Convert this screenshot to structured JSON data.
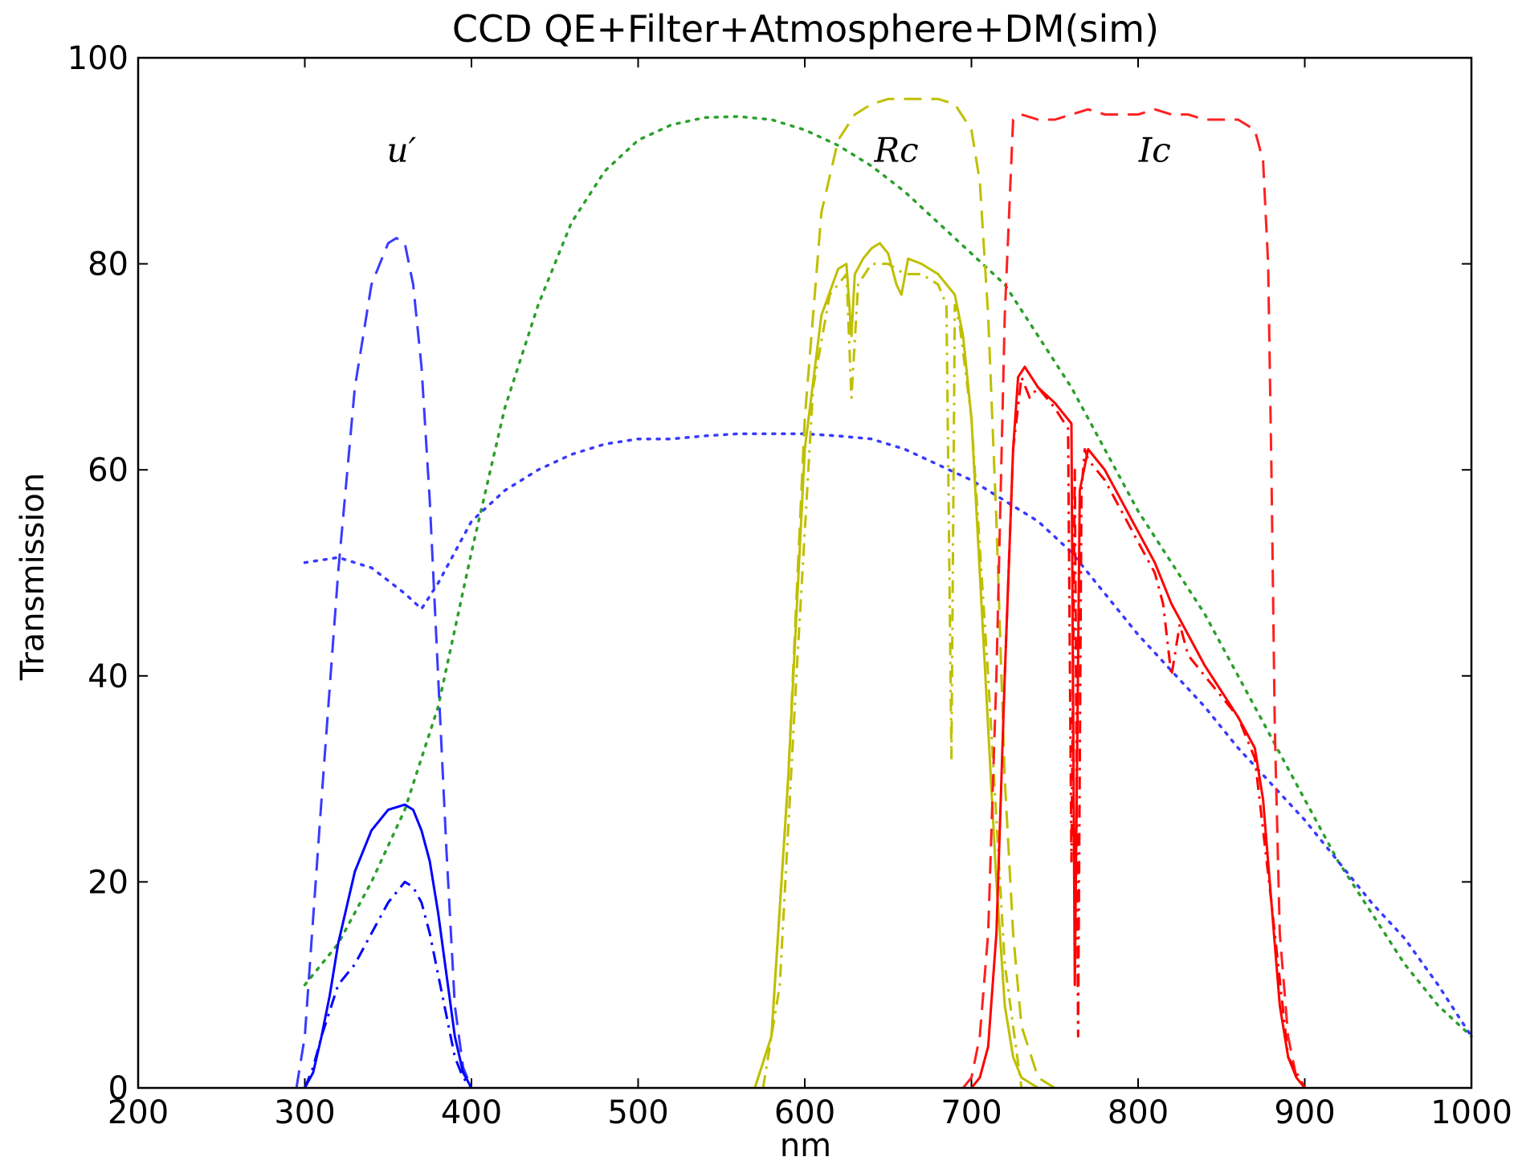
{
  "chart_data": {
    "type": "line",
    "title": "CCD QE+Filter+Atmosphere+DM(sim)",
    "xlabel": "nm",
    "ylabel": "Transmission",
    "xlim": [
      200,
      1000
    ],
    "ylim": [
      0,
      100
    ],
    "xticks": [
      200,
      300,
      400,
      500,
      600,
      700,
      800,
      900,
      1000
    ],
    "yticks": [
      0,
      20,
      40,
      60,
      80,
      100
    ],
    "grid": false,
    "legend": "none",
    "annotations": [
      {
        "text": "u′",
        "x": 358,
        "y": 91
      },
      {
        "text": "Rc",
        "x": 655,
        "y": 91
      },
      {
        "text": "Ic",
        "x": 810,
        "y": 91
      }
    ],
    "series": [
      {
        "role": "ccd_qe",
        "style": "dotted",
        "color": "#2ca02c",
        "x": [
          300,
          320,
          340,
          360,
          380,
          400,
          420,
          440,
          460,
          480,
          500,
          520,
          540,
          560,
          580,
          600,
          620,
          640,
          660,
          680,
          700,
          720,
          740,
          760,
          780,
          800,
          820,
          840,
          860,
          880,
          900,
          920,
          940,
          960,
          980,
          1000
        ],
        "y": [
          10,
          14,
          20,
          27,
          37,
          52,
          66,
          76,
          84,
          89,
          92,
          93.5,
          94.2,
          94.3,
          94,
          93,
          91.5,
          89.5,
          87,
          84,
          81,
          78,
          73,
          68,
          62,
          56,
          51,
          46,
          40,
          34,
          28,
          22,
          17,
          12,
          8,
          5
        ]
      },
      {
        "role": "atmosphere",
        "style": "dotted",
        "color": "#3a3aff",
        "x": [
          300,
          320,
          340,
          360,
          370,
          380,
          400,
          420,
          440,
          460,
          480,
          500,
          520,
          540,
          560,
          580,
          600,
          620,
          640,
          660,
          680,
          700,
          720,
          740,
          760,
          780,
          800,
          820,
          840,
          860,
          880,
          900,
          920,
          940,
          960,
          980,
          1000
        ],
        "y": [
          51,
          51.5,
          50.5,
          48,
          46.5,
          49,
          55,
          58,
          60,
          61.5,
          62.5,
          63,
          63,
          63.3,
          63.5,
          63.5,
          63.5,
          63.3,
          63,
          62,
          60.5,
          59,
          57,
          55,
          52,
          48,
          44,
          40.5,
          37,
          33,
          29.5,
          26,
          22,
          18,
          14.5,
          10,
          5
        ]
      },
      {
        "role": "u_filter",
        "style": "dashed",
        "color": "#3a3aff",
        "x": [
          295,
          300,
          310,
          320,
          330,
          340,
          345,
          350,
          355,
          360,
          365,
          370,
          375,
          380,
          385,
          390,
          395,
          400
        ],
        "y": [
          0,
          5,
          28,
          50,
          68,
          78,
          80,
          82,
          82.5,
          82,
          78,
          70,
          57,
          40,
          23,
          8,
          2,
          0
        ]
      },
      {
        "role": "u_total",
        "style": "solid",
        "color": "#0000ff",
        "x": [
          300,
          305,
          310,
          315,
          320,
          330,
          340,
          350,
          360,
          365,
          370,
          375,
          380,
          385,
          390,
          395,
          400
        ],
        "y": [
          0,
          1.5,
          5,
          9,
          14,
          21,
          25,
          27,
          27.5,
          27,
          25,
          22,
          17,
          11,
          5,
          1.5,
          0
        ]
      },
      {
        "role": "u_total_sim",
        "style": "dashdot",
        "color": "#0000ff",
        "x": [
          300,
          305,
          310,
          320,
          330,
          340,
          350,
          360,
          365,
          370,
          375,
          380,
          385,
          390,
          395,
          400
        ],
        "y": [
          0,
          2,
          5,
          10,
          12,
          15,
          18,
          20,
          19.5,
          18,
          15,
          11,
          7,
          3,
          1,
          0
        ]
      },
      {
        "role": "rc_filter",
        "style": "dashed",
        "color": "#bfbf00",
        "x": [
          570,
          580,
          590,
          600,
          610,
          620,
          630,
          640,
          650,
          660,
          670,
          680,
          690,
          700,
          705,
          710,
          715,
          720,
          725,
          730,
          740,
          750
        ],
        "y": [
          0,
          5,
          30,
          65,
          85,
          92,
          94.5,
          95.5,
          96,
          96,
          96,
          96,
          95.5,
          93,
          88,
          75,
          55,
          30,
          15,
          6,
          1,
          0
        ]
      },
      {
        "role": "rc_total",
        "style": "solid",
        "color": "#bfbf00",
        "x": [
          570,
          580,
          590,
          600,
          610,
          620,
          625,
          628,
          630,
          635,
          640,
          645,
          650,
          655,
          658,
          662,
          670,
          680,
          690,
          695,
          700,
          705,
          710,
          715,
          720,
          725,
          730,
          740
        ],
        "y": [
          0,
          5,
          30,
          62,
          75,
          79.5,
          80,
          73,
          79,
          80.5,
          81.5,
          82,
          81,
          78,
          77,
          80.5,
          80,
          79,
          77,
          73,
          65,
          50,
          35,
          20,
          8,
          3,
          1,
          0
        ]
      },
      {
        "role": "rc_total_sim",
        "style": "dashdot",
        "color": "#bfbf00",
        "x": [
          575,
          585,
          595,
          605,
          615,
          625,
          628,
          632,
          640,
          650,
          660,
          670,
          680,
          685,
          688,
          690,
          693,
          700,
          710,
          720,
          730
        ],
        "y": [
          0,
          10,
          40,
          68,
          77,
          79,
          67,
          78,
          80,
          80,
          79,
          79,
          78,
          76,
          32,
          76,
          74,
          65,
          40,
          12,
          0
        ]
      },
      {
        "role": "ic_filter",
        "style": "dashed",
        "color": "#ff2020",
        "x": [
          695,
          700,
          705,
          710,
          715,
          720,
          725,
          730,
          740,
          750,
          760,
          770,
          780,
          790,
          800,
          810,
          820,
          830,
          840,
          850,
          860,
          870,
          875,
          878,
          880,
          882,
          885,
          890,
          895,
          900
        ],
        "y": [
          0,
          1,
          5,
          15,
          40,
          75,
          94,
          94.5,
          94,
          94,
          94.5,
          95,
          94.5,
          94.5,
          94.5,
          95,
          94.5,
          94.5,
          94,
          94,
          94,
          93,
          90,
          80,
          60,
          35,
          15,
          5,
          1,
          0
        ]
      },
      {
        "role": "ic_total",
        "style": "solid",
        "color": "#ff0000",
        "x": [
          700,
          705,
          710,
          715,
          720,
          725,
          728,
          732,
          740,
          750,
          760,
          762,
          765,
          770,
          780,
          790,
          800,
          810,
          820,
          830,
          840,
          850,
          860,
          870,
          875,
          880,
          885,
          890,
          895,
          900
        ],
        "y": [
          0,
          1,
          4,
          15,
          40,
          62,
          69,
          70,
          68,
          66.5,
          64.5,
          10,
          58,
          62,
          60,
          57,
          54,
          51,
          47,
          44,
          41,
          38.5,
          36,
          33,
          28,
          18,
          8,
          3,
          1,
          0
        ]
      },
      {
        "role": "ic_total_sim",
        "style": "dashdot",
        "color": "#ff0000",
        "x": [
          720,
          725,
          730,
          735,
          740,
          750,
          758,
          760,
          762,
          764,
          766,
          768,
          770,
          780,
          790,
          800,
          810,
          815,
          820,
          825,
          830,
          840,
          850,
          860,
          870,
          880,
          890,
          900
        ],
        "y": [
          40,
          62,
          69,
          67,
          68,
          66,
          64,
          22,
          60,
          5,
          58,
          62,
          61,
          59,
          56,
          53,
          50,
          47,
          40,
          45,
          42,
          40,
          38,
          36,
          32,
          18,
          3,
          0
        ]
      }
    ]
  }
}
